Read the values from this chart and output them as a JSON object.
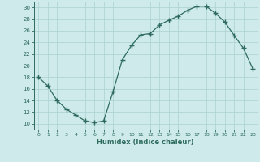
{
  "x": [
    0,
    1,
    2,
    3,
    4,
    5,
    6,
    7,
    8,
    9,
    10,
    11,
    12,
    13,
    14,
    15,
    16,
    17,
    18,
    19,
    20,
    21,
    22,
    23
  ],
  "y": [
    18,
    16.5,
    14,
    12.5,
    11.5,
    10.5,
    10.2,
    10.5,
    15.5,
    21,
    23.5,
    25.3,
    25.5,
    27,
    27.8,
    28.5,
    29.5,
    30.2,
    30.2,
    29,
    27.5,
    25.2,
    23,
    19.5
  ],
  "line_color": "#2e6b5e",
  "marker": "+",
  "marker_size": 4,
  "bg_color": "#ceeaeb",
  "grid_color": "#b0d4d4",
  "xlabel": "Humidex (Indice chaleur)",
  "xlim": [
    -0.5,
    23.5
  ],
  "ylim": [
    9,
    31
  ],
  "yticks": [
    10,
    12,
    14,
    16,
    18,
    20,
    22,
    24,
    26,
    28,
    30
  ],
  "xticks": [
    0,
    1,
    2,
    3,
    4,
    5,
    6,
    7,
    8,
    9,
    10,
    11,
    12,
    13,
    14,
    15,
    16,
    17,
    18,
    19,
    20,
    21,
    22,
    23
  ]
}
